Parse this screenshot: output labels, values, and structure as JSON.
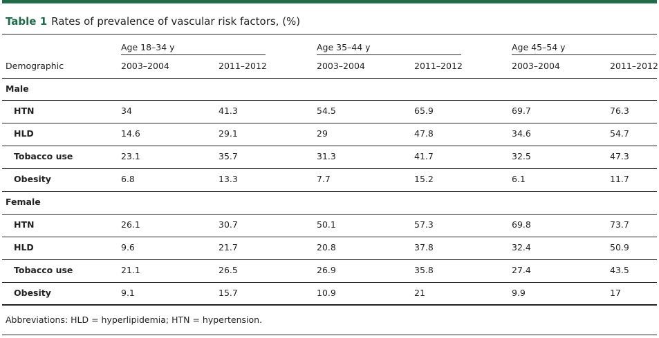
{
  "table": {
    "label": "Table 1",
    "title": "Rates of prevalence of vascular risk factors, (%)",
    "stub_header": "Demographic",
    "age_groups": [
      "Age 18–34 y",
      "Age 35–44 y",
      "Age 45–54 y"
    ],
    "years": [
      "2003–2004",
      "2011–2012"
    ],
    "sections": [
      {
        "name": "Male",
        "rows": [
          {
            "label": "HTN",
            "values": [
              "34",
              "41.3",
              "54.5",
              "65.9",
              "69.7",
              "76.3"
            ]
          },
          {
            "label": "HLD",
            "values": [
              "14.6",
              "29.1",
              "29",
              "47.8",
              "34.6",
              "54.7"
            ]
          },
          {
            "label": "Tobacco use",
            "values": [
              "23.1",
              "35.7",
              "31.3",
              "41.7",
              "32.5",
              "47.3"
            ]
          },
          {
            "label": "Obesity",
            "values": [
              "6.8",
              "13.3",
              "7.7",
              "15.2",
              "6.1",
              "11.7"
            ]
          }
        ]
      },
      {
        "name": "Female",
        "rows": [
          {
            "label": "HTN",
            "values": [
              "26.1",
              "30.7",
              "50.1",
              "57.3",
              "69.8",
              "73.7"
            ]
          },
          {
            "label": "HLD",
            "values": [
              "9.6",
              "21.7",
              "20.8",
              "37.8",
              "32.4",
              "50.9"
            ]
          },
          {
            "label": "Tobacco use",
            "values": [
              "21.1",
              "26.5",
              "26.9",
              "35.8",
              "27.4",
              "43.5"
            ]
          },
          {
            "label": "Obesity",
            "values": [
              "9.1",
              "15.7",
              "10.9",
              "21",
              "9.9",
              "17"
            ]
          }
        ]
      }
    ],
    "footnote": "Abbreviations: HLD = hyperlipidemia; HTN = hypertension.",
    "accent_color": "#1f6b4a"
  }
}
